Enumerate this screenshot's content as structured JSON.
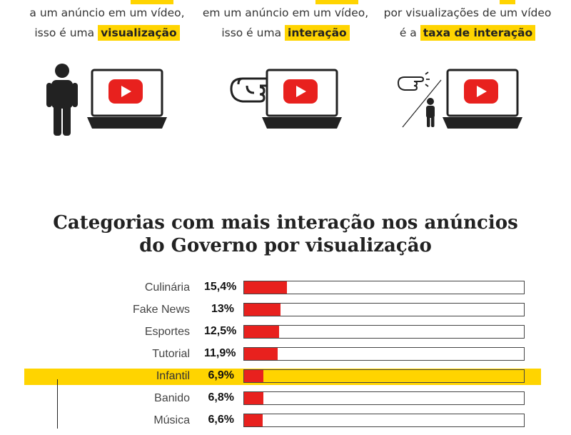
{
  "intro": [
    {
      "line1": "a um anúncio em um vídeo,",
      "line2_prefix": "isso é uma",
      "highlight": "visualização"
    },
    {
      "line1": "em um anúncio em um vídeo,",
      "line2_prefix": "isso é uma",
      "highlight": "interação"
    },
    {
      "line1": "por visualizações de um vídeo",
      "line2_prefix": "é a",
      "highlight": "taxa de interação"
    }
  ],
  "illustrations": [
    "person-icon",
    "laptop-youtube-icon",
    "pointing-hand-icon",
    "ratio-hand-person-icon"
  ],
  "chart_title": {
    "line1": "Categorias com mais interação nos anúncios",
    "line2": "do Governo por visualização"
  },
  "chart_data": {
    "type": "bar",
    "orientation": "horizontal",
    "title": "Categorias com mais interação nos anúncios do Governo por visualização",
    "categories": [
      "Culinária",
      "Fake News",
      "Esportes",
      "Tutorial",
      "Infantil",
      "Banido",
      "Música"
    ],
    "values": [
      15.4,
      13,
      12.5,
      11.9,
      6.9,
      6.8,
      6.6
    ],
    "labels": [
      "15,4%",
      "13%",
      "12,5%",
      "11,9%",
      "6,9%",
      "6,8%",
      "6,6%"
    ],
    "highlighted": "Infantil",
    "xlim": [
      0,
      100
    ],
    "unit": "%",
    "bar_color": "#e8211e",
    "highlight_color": "#ffd400"
  },
  "colors": {
    "accent": "#ffd400",
    "youtube_red": "#e8211e",
    "dark": "#222222"
  }
}
